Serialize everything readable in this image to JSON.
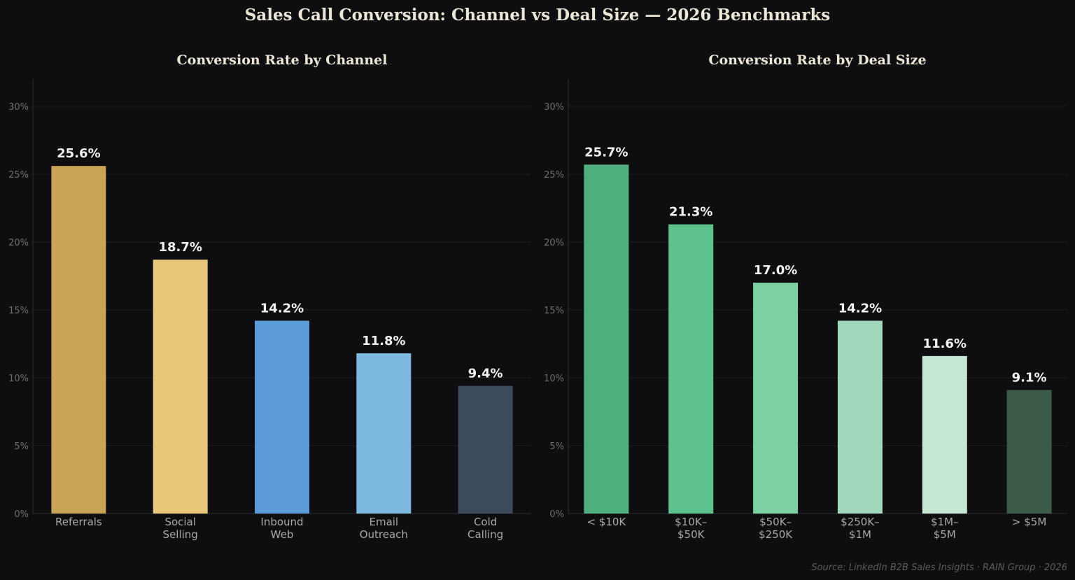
{
  "suptitle": "Sales Call Conversion: Channel vs Deal Size  —  2026 Benchmarks",
  "source": "Source: LinkedIn B2B Sales Insights · RAIN Group · 2026",
  "chart_data": [
    {
      "type": "bar",
      "title": "Conversion Rate by Channel",
      "xlabel": "",
      "ylabel": "",
      "ylim": [
        0,
        32
      ],
      "yticks": [
        0,
        5,
        10,
        15,
        20,
        25,
        30
      ],
      "ytick_labels": [
        "0%",
        "5%",
        "10%",
        "15%",
        "20%",
        "25%",
        "30%"
      ],
      "grid": true,
      "categories": [
        [
          "Referrals"
        ],
        [
          "Social",
          "Selling"
        ],
        [
          "Inbound",
          "Web"
        ],
        [
          "Email",
          "Outreach"
        ],
        [
          "Cold",
          "Calling"
        ]
      ],
      "values": [
        25.6,
        18.7,
        14.2,
        11.8,
        9.4
      ],
      "value_labels": [
        "25.6%",
        "18.7%",
        "14.2%",
        "11.8%",
        "9.4%"
      ],
      "colors": [
        "#c9a456",
        "#e9c87c",
        "#5b9bd8",
        "#7db8e0",
        "#3d4a5c"
      ]
    },
    {
      "type": "bar",
      "title": "Conversion Rate by Deal Size",
      "xlabel": "",
      "ylabel": "",
      "ylim": [
        0,
        32
      ],
      "yticks": [
        0,
        5,
        10,
        15,
        20,
        25,
        30
      ],
      "ytick_labels": [
        "0%",
        "5%",
        "10%",
        "15%",
        "20%",
        "25%",
        "30%"
      ],
      "grid": true,
      "categories": [
        [
          "< $10K"
        ],
        [
          "$10K–",
          "$50K"
        ],
        [
          "$50K–",
          "$250K"
        ],
        [
          "$250K–",
          "$1M"
        ],
        [
          "$1M–",
          "$5M"
        ],
        [
          "> $5M"
        ]
      ],
      "values": [
        25.7,
        21.3,
        17.0,
        14.2,
        11.6,
        9.1
      ],
      "value_labels": [
        "25.7%",
        "21.3%",
        "17.0%",
        "14.2%",
        "11.6%",
        "9.1%"
      ],
      "colors": [
        "#4fae7e",
        "#5ec28e",
        "#7dd1a3",
        "#a2d8bb",
        "#c7e9d3",
        "#3c5c48"
      ]
    }
  ]
}
